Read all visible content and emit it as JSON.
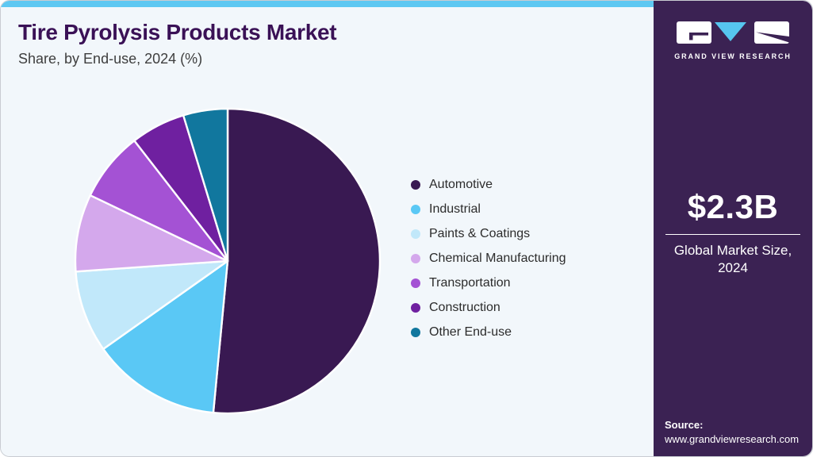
{
  "header": {
    "title": "Tire Pyrolysis Products Market",
    "subtitle": "Share, by End-use, 2024 (%)"
  },
  "chart_data": {
    "type": "pie",
    "title": "Tire Pyrolysis Products Market Share, by End-use, 2024 (%)",
    "categories": [
      "Automotive",
      "Industrial",
      "Paints & Coatings",
      "Chemical Manufacturing",
      "Transportation",
      "Construction",
      "Other End-use"
    ],
    "values": [
      51.5,
      13.7,
      8.7,
      8.2,
      7.4,
      5.8,
      4.7
    ],
    "values_estimated_from_angles": true,
    "unit": "%",
    "colors": [
      "#391952",
      "#5ac8f5",
      "#c1e8fa",
      "#d4a8ec",
      "#a452d4",
      "#6f20a0",
      "#11779e"
    ],
    "start_angle": "top",
    "direction": "clockwise",
    "legend_position": "right",
    "slice_gap_color": "#ffffff"
  },
  "sidebar": {
    "brand": "GRAND VIEW RESEARCH",
    "brand_accent": "#56c5ef",
    "background": "#3b2253",
    "stat_value": "$2.3B",
    "stat_label": "Global Market Size, 2024",
    "source_label": "Source:",
    "source_url": "www.grandviewresearch.com"
  },
  "colors": {
    "card_background": "#f2f7fb",
    "top_strip": "#5ec8f2",
    "title_text": "#3a1156",
    "border": "#c9ccd2"
  }
}
